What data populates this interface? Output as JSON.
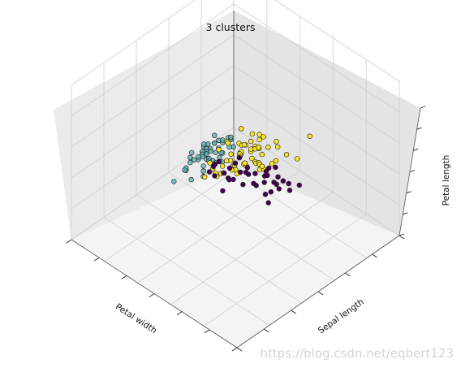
{
  "watermark": "https://blog.csdn.net/eqbert123",
  "chart_data": {
    "type": "scatter",
    "title": "3 clusters",
    "xlabel": "Petal width",
    "ylabel": "Sepal length",
    "zlabel": "Petal length",
    "xlim": [
      0,
      2.5
    ],
    "ylim": [
      4,
      8
    ],
    "zlim": [
      1,
      7
    ],
    "grid": true,
    "series": [
      {
        "color": "#440154",
        "values": [
          [
            2.1,
            6.6,
            5.5
          ],
          [
            2.3,
            7.0,
            6.0
          ],
          [
            2.0,
            7.5,
            6.4
          ],
          [
            2.2,
            7.7,
            6.7
          ],
          [
            1.8,
            6.9,
            5.8
          ],
          [
            2.4,
            6.8,
            5.7
          ],
          [
            1.9,
            7.2,
            6.1
          ],
          [
            2.0,
            6.4,
            5.4
          ],
          [
            2.5,
            7.3,
            6.2
          ],
          [
            2.1,
            6.9,
            5.9
          ],
          [
            1.8,
            7.4,
            6.3
          ],
          [
            2.3,
            6.7,
            5.6
          ],
          [
            2.2,
            6.5,
            5.5
          ],
          [
            1.9,
            7.6,
            6.6
          ],
          [
            2.0,
            7.1,
            6.0
          ],
          [
            2.4,
            6.3,
            5.3
          ],
          [
            2.1,
            7.9,
            6.9
          ],
          [
            1.8,
            6.8,
            5.9
          ],
          [
            2.3,
            7.2,
            6.1
          ],
          [
            2.2,
            6.6,
            5.4
          ],
          [
            2.0,
            6.9,
            5.7
          ],
          [
            1.9,
            7.7,
            6.5
          ],
          [
            2.4,
            7.0,
            5.8
          ],
          [
            2.1,
            6.4,
            5.6
          ],
          [
            2.5,
            6.7,
            5.7
          ],
          [
            1.8,
            7.3,
            6.3
          ],
          [
            2.2,
            7.6,
            6.6
          ],
          [
            2.0,
            6.5,
            5.2
          ],
          [
            2.3,
            6.9,
            5.1
          ],
          [
            1.9,
            6.3,
            5.0
          ],
          [
            2.1,
            7.2,
            5.8
          ],
          [
            2.4,
            6.7,
            5.9
          ],
          [
            2.0,
            7.4,
            6.1
          ],
          [
            1.8,
            6.6,
            5.3
          ],
          [
            2.2,
            7.1,
            5.9
          ],
          [
            2.3,
            6.4,
            5.3
          ],
          [
            1.9,
            6.8,
            5.5
          ],
          [
            2.1,
            7.7,
            6.1
          ]
        ]
      },
      {
        "color": "#5cb2b0",
        "values": [
          [
            0.2,
            5.1,
            1.4
          ],
          [
            0.2,
            4.9,
            1.4
          ],
          [
            0.2,
            4.7,
            1.3
          ],
          [
            0.2,
            4.6,
            1.5
          ],
          [
            0.2,
            5.0,
            1.4
          ],
          [
            0.4,
            5.4,
            1.7
          ],
          [
            0.3,
            4.6,
            1.4
          ],
          [
            0.2,
            5.0,
            1.5
          ],
          [
            0.2,
            4.4,
            1.4
          ],
          [
            0.1,
            4.9,
            1.5
          ],
          [
            0.2,
            5.4,
            1.5
          ],
          [
            0.2,
            4.8,
            1.6
          ],
          [
            0.1,
            4.8,
            1.4
          ],
          [
            0.1,
            4.3,
            1.1
          ],
          [
            0.2,
            5.8,
            1.2
          ],
          [
            0.4,
            5.7,
            1.5
          ],
          [
            0.4,
            5.4,
            1.3
          ],
          [
            0.3,
            5.1,
            1.4
          ],
          [
            0.3,
            5.7,
            1.7
          ],
          [
            0.3,
            5.1,
            1.5
          ],
          [
            0.2,
            5.4,
            1.7
          ],
          [
            0.4,
            5.1,
            1.5
          ],
          [
            0.2,
            4.6,
            1.0
          ],
          [
            0.5,
            5.1,
            1.7
          ],
          [
            0.2,
            4.8,
            1.9
          ],
          [
            0.2,
            5.0,
            1.6
          ],
          [
            0.4,
            5.0,
            1.6
          ],
          [
            0.2,
            5.2,
            1.5
          ],
          [
            0.2,
            5.2,
            1.4
          ],
          [
            0.2,
            4.7,
            1.6
          ],
          [
            0.2,
            4.8,
            1.6
          ],
          [
            0.4,
            5.4,
            1.5
          ],
          [
            0.1,
            5.2,
            1.5
          ],
          [
            0.2,
            5.5,
            1.4
          ],
          [
            0.2,
            4.9,
            1.5
          ],
          [
            0.2,
            5.0,
            1.2
          ],
          [
            0.2,
            5.5,
            1.3
          ],
          [
            0.1,
            4.9,
            1.4
          ],
          [
            0.2,
            4.4,
            1.3
          ],
          [
            0.2,
            5.1,
            1.5
          ],
          [
            0.3,
            5.0,
            1.3
          ],
          [
            0.3,
            4.5,
            1.3
          ],
          [
            0.2,
            4.4,
            1.3
          ],
          [
            0.6,
            5.0,
            1.6
          ],
          [
            0.4,
            5.1,
            1.9
          ],
          [
            0.3,
            4.8,
            1.4
          ],
          [
            0.2,
            5.1,
            1.6
          ],
          [
            0.2,
            4.6,
            1.4
          ],
          [
            0.2,
            5.3,
            1.5
          ],
          [
            0.2,
            5.0,
            1.4
          ]
        ]
      },
      {
        "color": "#fde725",
        "values": [
          [
            1.4,
            7.0,
            4.7
          ],
          [
            1.5,
            6.4,
            4.5
          ],
          [
            1.5,
            6.9,
            4.9
          ],
          [
            1.3,
            5.5,
            4.0
          ],
          [
            1.5,
            6.5,
            4.6
          ],
          [
            1.3,
            5.7,
            4.5
          ],
          [
            1.6,
            6.3,
            4.7
          ],
          [
            1.0,
            4.9,
            3.3
          ],
          [
            1.3,
            6.6,
            4.6
          ],
          [
            1.4,
            5.2,
            3.9
          ],
          [
            1.0,
            5.0,
            3.5
          ],
          [
            1.5,
            5.9,
            4.2
          ],
          [
            1.0,
            6.0,
            4.0
          ],
          [
            1.4,
            6.1,
            4.7
          ],
          [
            1.3,
            5.6,
            3.6
          ],
          [
            1.4,
            6.7,
            4.4
          ],
          [
            1.5,
            5.6,
            4.5
          ],
          [
            1.0,
            5.8,
            4.1
          ],
          [
            1.5,
            6.2,
            4.5
          ],
          [
            1.1,
            5.6,
            3.9
          ],
          [
            1.8,
            5.9,
            4.8
          ],
          [
            1.3,
            6.1,
            4.0
          ],
          [
            1.5,
            6.3,
            4.9
          ],
          [
            1.2,
            6.1,
            4.7
          ],
          [
            1.3,
            6.4,
            4.3
          ],
          [
            1.4,
            6.6,
            4.4
          ],
          [
            1.4,
            6.8,
            4.8
          ],
          [
            1.7,
            6.7,
            5.0
          ],
          [
            1.5,
            6.0,
            4.5
          ],
          [
            1.0,
            5.7,
            3.5
          ],
          [
            1.1,
            5.5,
            3.8
          ],
          [
            1.0,
            5.5,
            3.7
          ],
          [
            1.2,
            5.8,
            3.9
          ],
          [
            1.6,
            6.0,
            5.1
          ],
          [
            1.5,
            5.4,
            4.5
          ],
          [
            1.6,
            6.0,
            4.5
          ],
          [
            1.5,
            6.7,
            4.7
          ],
          [
            1.3,
            6.3,
            4.4
          ],
          [
            1.3,
            5.6,
            4.1
          ],
          [
            1.3,
            5.5,
            4.0
          ],
          [
            1.2,
            5.5,
            4.4
          ],
          [
            1.4,
            6.1,
            4.6
          ],
          [
            1.2,
            5.8,
            4.0
          ],
          [
            1.0,
            5.0,
            3.3
          ],
          [
            1.3,
            5.6,
            4.2
          ],
          [
            1.2,
            5.7,
            4.2
          ],
          [
            1.3,
            5.7,
            4.2
          ],
          [
            1.3,
            6.2,
            4.3
          ],
          [
            1.1,
            5.1,
            3.0
          ],
          [
            1.3,
            5.7,
            4.1
          ],
          [
            1.8,
            6.3,
            4.9
          ],
          [
            1.7,
            4.9,
            4.5
          ],
          [
            1.8,
            6.0,
            4.8
          ],
          [
            1.5,
            6.3,
            5.0
          ],
          [
            1.4,
            6.1,
            5.6
          ],
          [
            1.8,
            6.2,
            4.8
          ],
          [
            1.6,
            7.2,
            5.8
          ],
          [
            1.9,
            5.8,
            5.1
          ],
          [
            1.8,
            6.3,
            5.1
          ],
          [
            2.0,
            5.7,
            5.0
          ],
          [
            1.7,
            6.5,
            5.2
          ],
          [
            1.9,
            6.4,
            5.3
          ]
        ]
      }
    ]
  }
}
